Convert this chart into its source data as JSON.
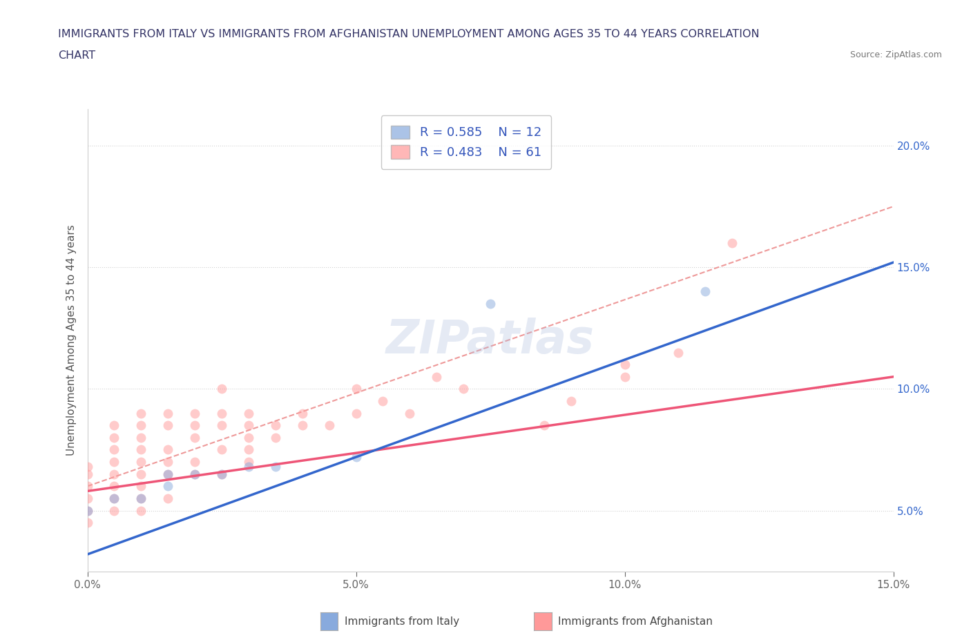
{
  "title_line1": "IMMIGRANTS FROM ITALY VS IMMIGRANTS FROM AFGHANISTAN UNEMPLOYMENT AMONG AGES 35 TO 44 YEARS CORRELATION",
  "title_line2": "CHART",
  "source_text": "Source: ZipAtlas.com",
  "ylabel": "Unemployment Among Ages 35 to 44 years",
  "xlim": [
    0.0,
    0.15
  ],
  "ylim": [
    0.025,
    0.215
  ],
  "xticks": [
    0.0,
    0.05,
    0.1,
    0.15
  ],
  "yticks": [
    0.05,
    0.1,
    0.15,
    0.2
  ],
  "italy_color": "#88AADD",
  "afghanistan_color": "#FF9999",
  "italy_r": 0.585,
  "italy_n": 12,
  "afghanistan_r": 0.483,
  "afghanistan_n": 61,
  "italy_scatter": [
    [
      0.0,
      0.05
    ],
    [
      0.005,
      0.055
    ],
    [
      0.01,
      0.055
    ],
    [
      0.015,
      0.06
    ],
    [
      0.015,
      0.065
    ],
    [
      0.02,
      0.065
    ],
    [
      0.025,
      0.065
    ],
    [
      0.03,
      0.068
    ],
    [
      0.035,
      0.068
    ],
    [
      0.05,
      0.072
    ],
    [
      0.075,
      0.135
    ],
    [
      0.115,
      0.14
    ]
  ],
  "afghanistan_scatter": [
    [
      0.0,
      0.045
    ],
    [
      0.0,
      0.05
    ],
    [
      0.0,
      0.055
    ],
    [
      0.0,
      0.06
    ],
    [
      0.0,
      0.065
    ],
    [
      0.0,
      0.068
    ],
    [
      0.005,
      0.05
    ],
    [
      0.005,
      0.055
    ],
    [
      0.005,
      0.06
    ],
    [
      0.005,
      0.065
    ],
    [
      0.005,
      0.07
    ],
    [
      0.005,
      0.075
    ],
    [
      0.005,
      0.08
    ],
    [
      0.005,
      0.085
    ],
    [
      0.01,
      0.05
    ],
    [
      0.01,
      0.055
    ],
    [
      0.01,
      0.06
    ],
    [
      0.01,
      0.065
    ],
    [
      0.01,
      0.07
    ],
    [
      0.01,
      0.075
    ],
    [
      0.01,
      0.08
    ],
    [
      0.01,
      0.085
    ],
    [
      0.01,
      0.09
    ],
    [
      0.015,
      0.055
    ],
    [
      0.015,
      0.065
    ],
    [
      0.015,
      0.07
    ],
    [
      0.015,
      0.075
    ],
    [
      0.015,
      0.085
    ],
    [
      0.015,
      0.09
    ],
    [
      0.02,
      0.065
    ],
    [
      0.02,
      0.07
    ],
    [
      0.02,
      0.08
    ],
    [
      0.02,
      0.085
    ],
    [
      0.02,
      0.09
    ],
    [
      0.025,
      0.065
    ],
    [
      0.025,
      0.075
    ],
    [
      0.025,
      0.085
    ],
    [
      0.025,
      0.09
    ],
    [
      0.025,
      0.1
    ],
    [
      0.03,
      0.07
    ],
    [
      0.03,
      0.075
    ],
    [
      0.03,
      0.08
    ],
    [
      0.03,
      0.085
    ],
    [
      0.03,
      0.09
    ],
    [
      0.035,
      0.08
    ],
    [
      0.035,
      0.085
    ],
    [
      0.04,
      0.085
    ],
    [
      0.04,
      0.09
    ],
    [
      0.045,
      0.085
    ],
    [
      0.05,
      0.09
    ],
    [
      0.05,
      0.1
    ],
    [
      0.055,
      0.095
    ],
    [
      0.06,
      0.09
    ],
    [
      0.065,
      0.105
    ],
    [
      0.07,
      0.1
    ],
    [
      0.085,
      0.085
    ],
    [
      0.09,
      0.095
    ],
    [
      0.1,
      0.105
    ],
    [
      0.1,
      0.11
    ],
    [
      0.11,
      0.115
    ],
    [
      0.12,
      0.16
    ]
  ],
  "italy_line_x": [
    0.0,
    0.15
  ],
  "italy_line_y": [
    0.032,
    0.152
  ],
  "afghanistan_line_x": [
    0.0,
    0.15
  ],
  "afghanistan_line_y": [
    0.058,
    0.105
  ],
  "dashed_line_x": [
    0.0,
    0.15
  ],
  "dashed_line_y": [
    0.06,
    0.175
  ],
  "marker_size": 100,
  "title_color": "#333366",
  "axis_label_color": "#555555",
  "tick_color": "#666666",
  "legend_color": "#3355BB",
  "italy_line_color": "#3366CC",
  "afghanistan_line_color": "#EE5577",
  "dashed_line_color": "#EE9999",
  "watermark_color": "#AABBDD"
}
